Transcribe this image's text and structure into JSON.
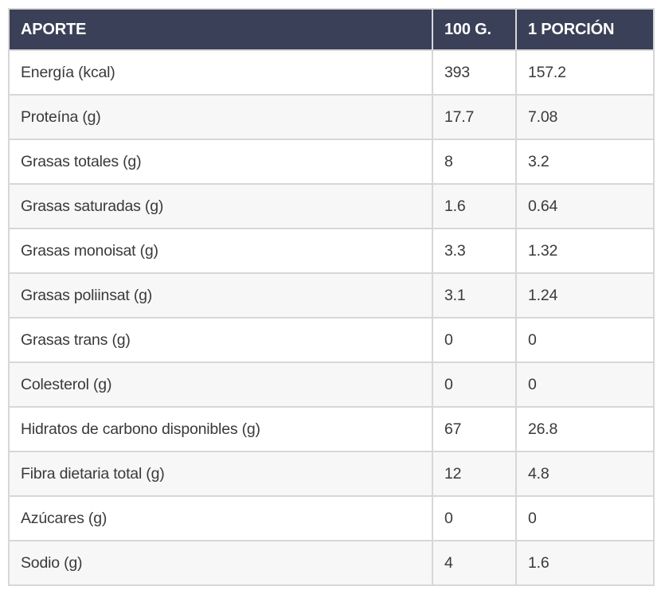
{
  "chart_data": {
    "type": "table",
    "title": "APORTE",
    "columns": [
      "APORTE",
      "100 G.",
      "1 PORCIÓN"
    ],
    "rows": [
      {
        "label": "Energía (kcal)",
        "per100": "393",
        "portion": "157.2"
      },
      {
        "label": "Proteína (g)",
        "per100": "17.7",
        "portion": "7.08"
      },
      {
        "label": "Grasas totales (g)",
        "per100": "8",
        "portion": "3.2"
      },
      {
        "label": "Grasas saturadas (g)",
        "per100": "1.6",
        "portion": "0.64"
      },
      {
        "label": "Grasas monoisat (g)",
        "per100": "3.3",
        "portion": "1.32"
      },
      {
        "label": "Grasas poliinsat (g)",
        "per100": "3.1",
        "portion": "1.24"
      },
      {
        "label": "Grasas trans (g)",
        "per100": "0",
        "portion": "0"
      },
      {
        "label": "Colesterol (g)",
        "per100": "0",
        "portion": "0"
      },
      {
        "label": "Hidratos de carbono disponibles (g)",
        "per100": "67",
        "portion": "26.8"
      },
      {
        "label": "Fibra dietaria total (g)",
        "per100": "12",
        "portion": "4.8"
      },
      {
        "label": "Azúcares (g)",
        "per100": "0",
        "portion": "0"
      },
      {
        "label": "Sodio (g)",
        "per100": "4",
        "portion": "1.6"
      }
    ],
    "layout": {
      "legend": "none",
      "grid": "on",
      "row_striping": "alternating"
    }
  },
  "colors": {
    "header_bg": "#3a4057",
    "header_text": "#ffffff",
    "body_text": "#3a3a3a",
    "row_alt_bg": "#f7f7f7",
    "border": "#d7d7d7"
  }
}
